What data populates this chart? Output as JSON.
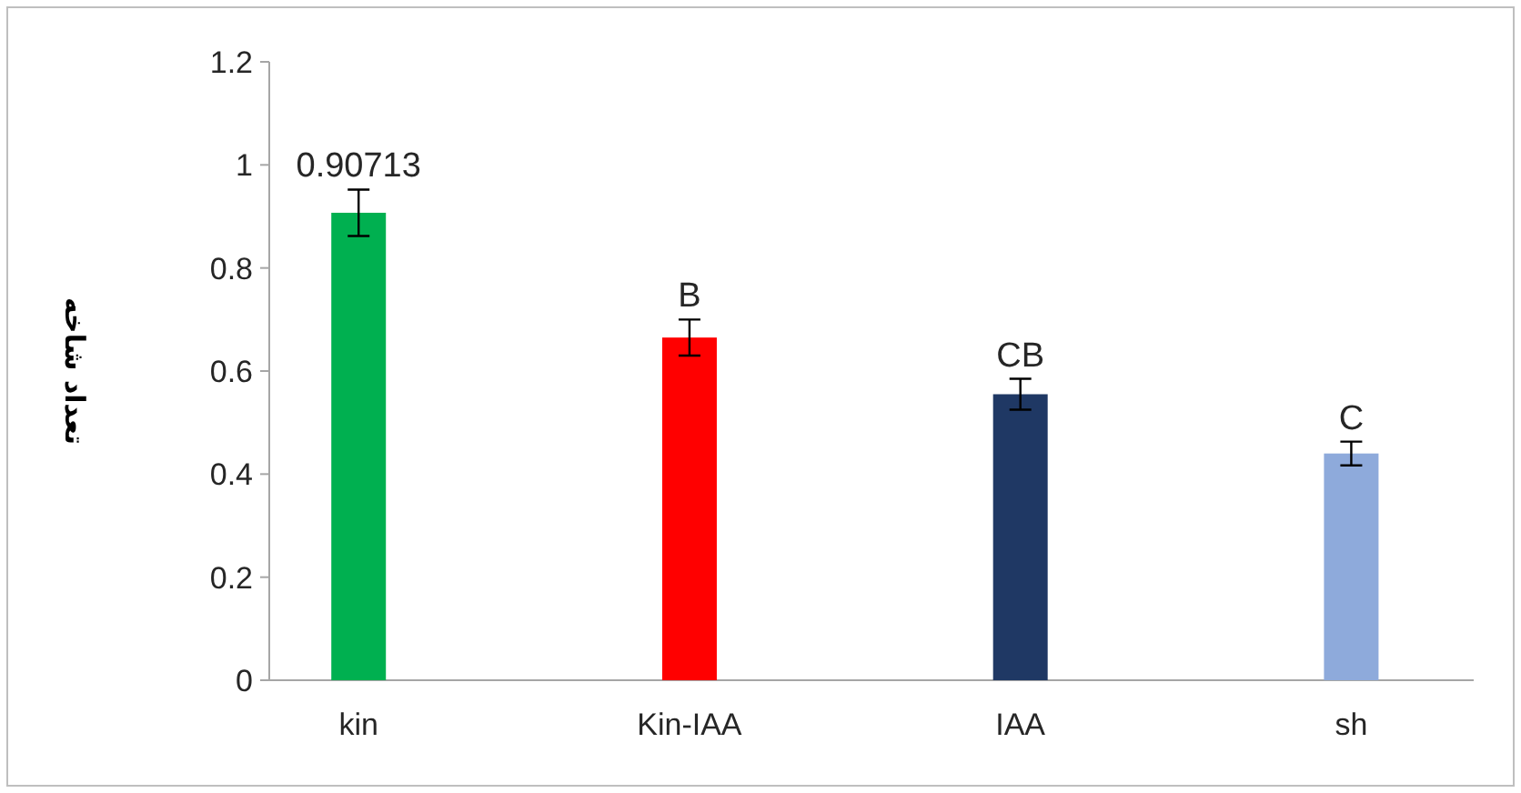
{
  "chart_data": {
    "type": "bar",
    "ylabel": "تعداد شاخه",
    "categories": [
      "kin",
      "Kin-IAA",
      "IAA",
      "sh"
    ],
    "values": [
      0.90713,
      0.665,
      0.555,
      0.44
    ],
    "errors": [
      0.045,
      0.035,
      0.03,
      0.023
    ],
    "value_labels": [
      "0.90713",
      "B",
      "CB",
      "C"
    ],
    "colors": [
      "#00b050",
      "#ff0000",
      "#1f3864",
      "#8eaadb"
    ],
    "ylim": [
      0,
      1.2
    ],
    "yticks": [
      0,
      0.2,
      0.4,
      0.6,
      0.8,
      1,
      1.2
    ]
  }
}
